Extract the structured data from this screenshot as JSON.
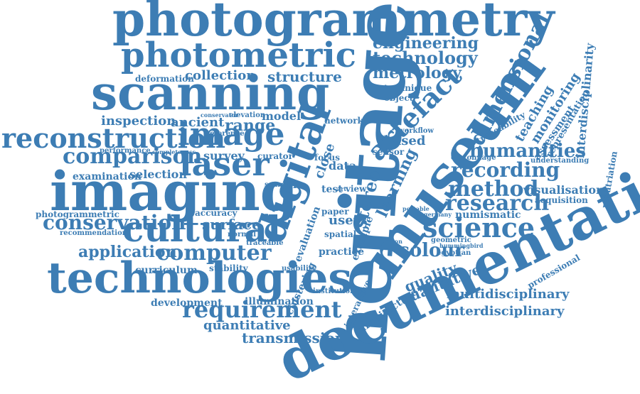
{
  "colors": {
    "word": "#3d7db4",
    "background": "#ffffff"
  },
  "words": {
    "photogrammetry": "photogrammetry",
    "photometric": "photometric",
    "scanning": "scanning",
    "imaging": "imaging",
    "technologies": "technologies",
    "reconstruction": "reconstruction",
    "image": "image",
    "comparison": "comparison",
    "laser": "laser",
    "cultural": "cultural",
    "conservation": "conservation",
    "computer": "computer",
    "application": "application",
    "requirement": "requirement",
    "heritage": "heritage",
    "museum": "museum",
    "documentation": "documentation",
    "digital": "digital",
    "artefact": "artefact",
    "dimensional": "dimensional",
    "science": "science",
    "method": "method",
    "research": "research",
    "humanities": "humanities",
    "recording": "recording",
    "engineering": "engineering",
    "technology": "technology",
    "metrology": "metrology",
    "structure": "structure",
    "collection": "collection",
    "deformation": "deformation",
    "inspection": "inspection",
    "ancient": "ancient",
    "range": "range",
    "survey": "survey",
    "selection": "selection",
    "examination": "examination",
    "performance": "performance",
    "photogrammetric": "photogrammetric",
    "recommendation": "recommendation",
    "surface": "surface",
    "accuracy": "accuracy",
    "curriculum": "curriculum",
    "stability": "stability",
    "development": "development",
    "illumination": "illumination",
    "quantitative": "quantitative",
    "transmission": "transmission",
    "visualisation": "visualisation",
    "acquisition": "acquisition",
    "numismatic": "numismatic",
    "colour": "colour",
    "quality": "quality",
    "qualitative": "qualitative",
    "multidisciplinary": "multidisciplinary",
    "interdisciplinary": "interdisciplinary",
    "architecture": "architecture",
    "professional": "professional",
    "geometric": "geometric",
    "egyptian": "egyptian",
    "germany": "germany",
    "cartonnage": "cartonnage",
    "understanding": "understanding",
    "repatriation": "repatriation",
    "interdisciplinarity": "interdisciplinarity",
    "representation": "representation",
    "assessment": "assessment",
    "monitoring": "monitoring",
    "teaching": "teaching",
    "traceability": "traceability",
    "based": "based",
    "workflow": "workflow",
    "technique": "technique",
    "object": "object",
    "stereo": "stereo",
    "close": "close",
    "learning": "learning",
    "data": "data",
    "model": "model",
    "elevation": "elevation",
    "network": "network",
    "curator": "curator",
    "focus": "focus",
    "coin": "coin",
    "test": "test",
    "art": "art",
    "view": "view",
    "user": "user",
    "spatial": "spatial",
    "paper": "paper",
    "practice": "practice",
    "institution": "institution",
    "clustering": "clustering",
    "interactive": "interactive",
    "evaluation": "evaluation",
    "usability": "usability",
    "reference": "reference",
    "completeness": "completeness",
    "conservator": "conservator",
    "normal": "normal",
    "scan": "scan",
    "traceable": "traceable",
    "sensor": "sensor",
    "virtual": "virtual",
    "portable": "portable",
    "example": "example",
    "hummingbird": "hummingbird",
    "resolution": "resolution"
  }
}
